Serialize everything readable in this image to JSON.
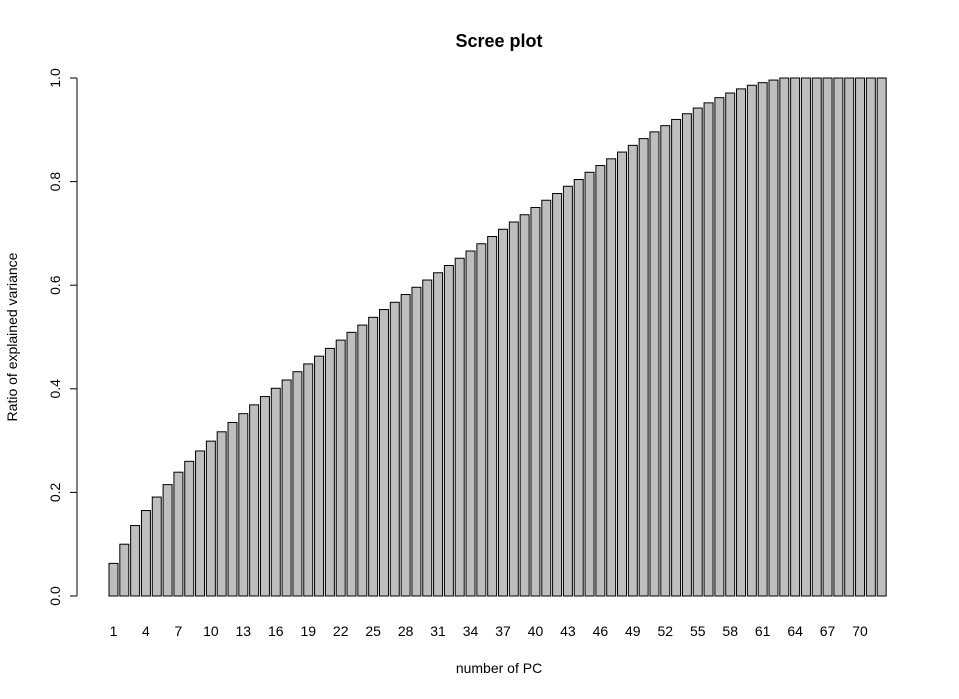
{
  "chart_data": {
    "type": "bar",
    "title": "Scree plot",
    "xlabel": "number of PC",
    "ylabel": "Ratio of explained variance",
    "ylim": [
      0,
      1.0
    ],
    "yticks": [
      0.0,
      0.2,
      0.4,
      0.6,
      0.8,
      1.0
    ],
    "ytick_labels": [
      "0.0",
      "0.2",
      "0.4",
      "0.6",
      "0.8",
      "1.0"
    ],
    "xtick_labels": [
      "1",
      "4",
      "7",
      "10",
      "13",
      "16",
      "19",
      "22",
      "25",
      "28",
      "31",
      "34",
      "37",
      "40",
      "43",
      "46",
      "49",
      "52",
      "55",
      "58",
      "61",
      "64",
      "67",
      "70"
    ],
    "xtick_categories": [
      1,
      4,
      7,
      10,
      13,
      16,
      19,
      22,
      25,
      28,
      31,
      34,
      37,
      40,
      43,
      46,
      49,
      52,
      55,
      58,
      61,
      64,
      67,
      70
    ],
    "grid": false,
    "bar_color": "#bebebe",
    "categories": [
      1,
      2,
      3,
      4,
      5,
      6,
      7,
      8,
      9,
      10,
      11,
      12,
      13,
      14,
      15,
      16,
      17,
      18,
      19,
      20,
      21,
      22,
      23,
      24,
      25,
      26,
      27,
      28,
      29,
      30,
      31,
      32,
      33,
      34,
      35,
      36,
      37,
      38,
      39,
      40,
      41,
      42,
      43,
      44,
      45,
      46,
      47,
      48,
      49,
      50,
      51,
      52,
      53,
      54,
      55,
      56,
      57,
      58,
      59,
      60,
      61,
      62,
      63,
      64,
      65,
      66,
      67,
      68,
      69,
      70,
      71,
      72
    ],
    "values": [
      0.063,
      0.1,
      0.136,
      0.165,
      0.191,
      0.215,
      0.239,
      0.26,
      0.28,
      0.299,
      0.317,
      0.335,
      0.352,
      0.369,
      0.385,
      0.401,
      0.417,
      0.433,
      0.448,
      0.463,
      0.478,
      0.494,
      0.509,
      0.523,
      0.538,
      0.553,
      0.567,
      0.582,
      0.596,
      0.61,
      0.624,
      0.638,
      0.652,
      0.666,
      0.68,
      0.694,
      0.708,
      0.722,
      0.736,
      0.75,
      0.764,
      0.777,
      0.791,
      0.804,
      0.818,
      0.831,
      0.844,
      0.857,
      0.87,
      0.883,
      0.896,
      0.908,
      0.92,
      0.931,
      0.942,
      0.952,
      0.962,
      0.971,
      0.979,
      0.986,
      0.991,
      0.996,
      1.0,
      1.0,
      1.0,
      1.0,
      1.0,
      1.0,
      1.0,
      1.0,
      1.0,
      1.0
    ]
  }
}
